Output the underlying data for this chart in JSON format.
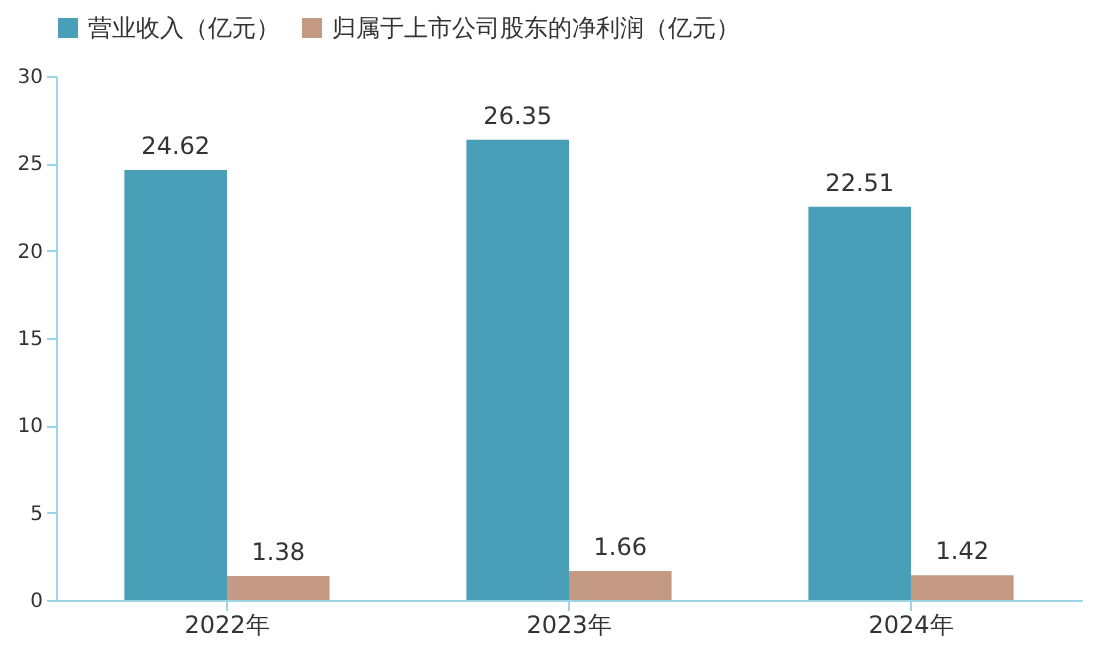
{
  "chart_data": {
    "type": "bar",
    "categories": [
      "2022年",
      "2023年",
      "2024年"
    ],
    "series": [
      {
        "name": "营业收入（亿元）",
        "color": "#4a9fb8",
        "values": [
          24.62,
          26.35,
          22.51
        ]
      },
      {
        "name": "归属于上市公司股东的净利润（亿元）",
        "color": "#c49a85",
        "values": [
          1.38,
          1.66,
          1.42
        ]
      }
    ],
    "ylim": [
      0,
      30
    ],
    "yticks": [
      0,
      5,
      10,
      15,
      20,
      25,
      30
    ],
    "legend": "top",
    "data_labels": true
  }
}
